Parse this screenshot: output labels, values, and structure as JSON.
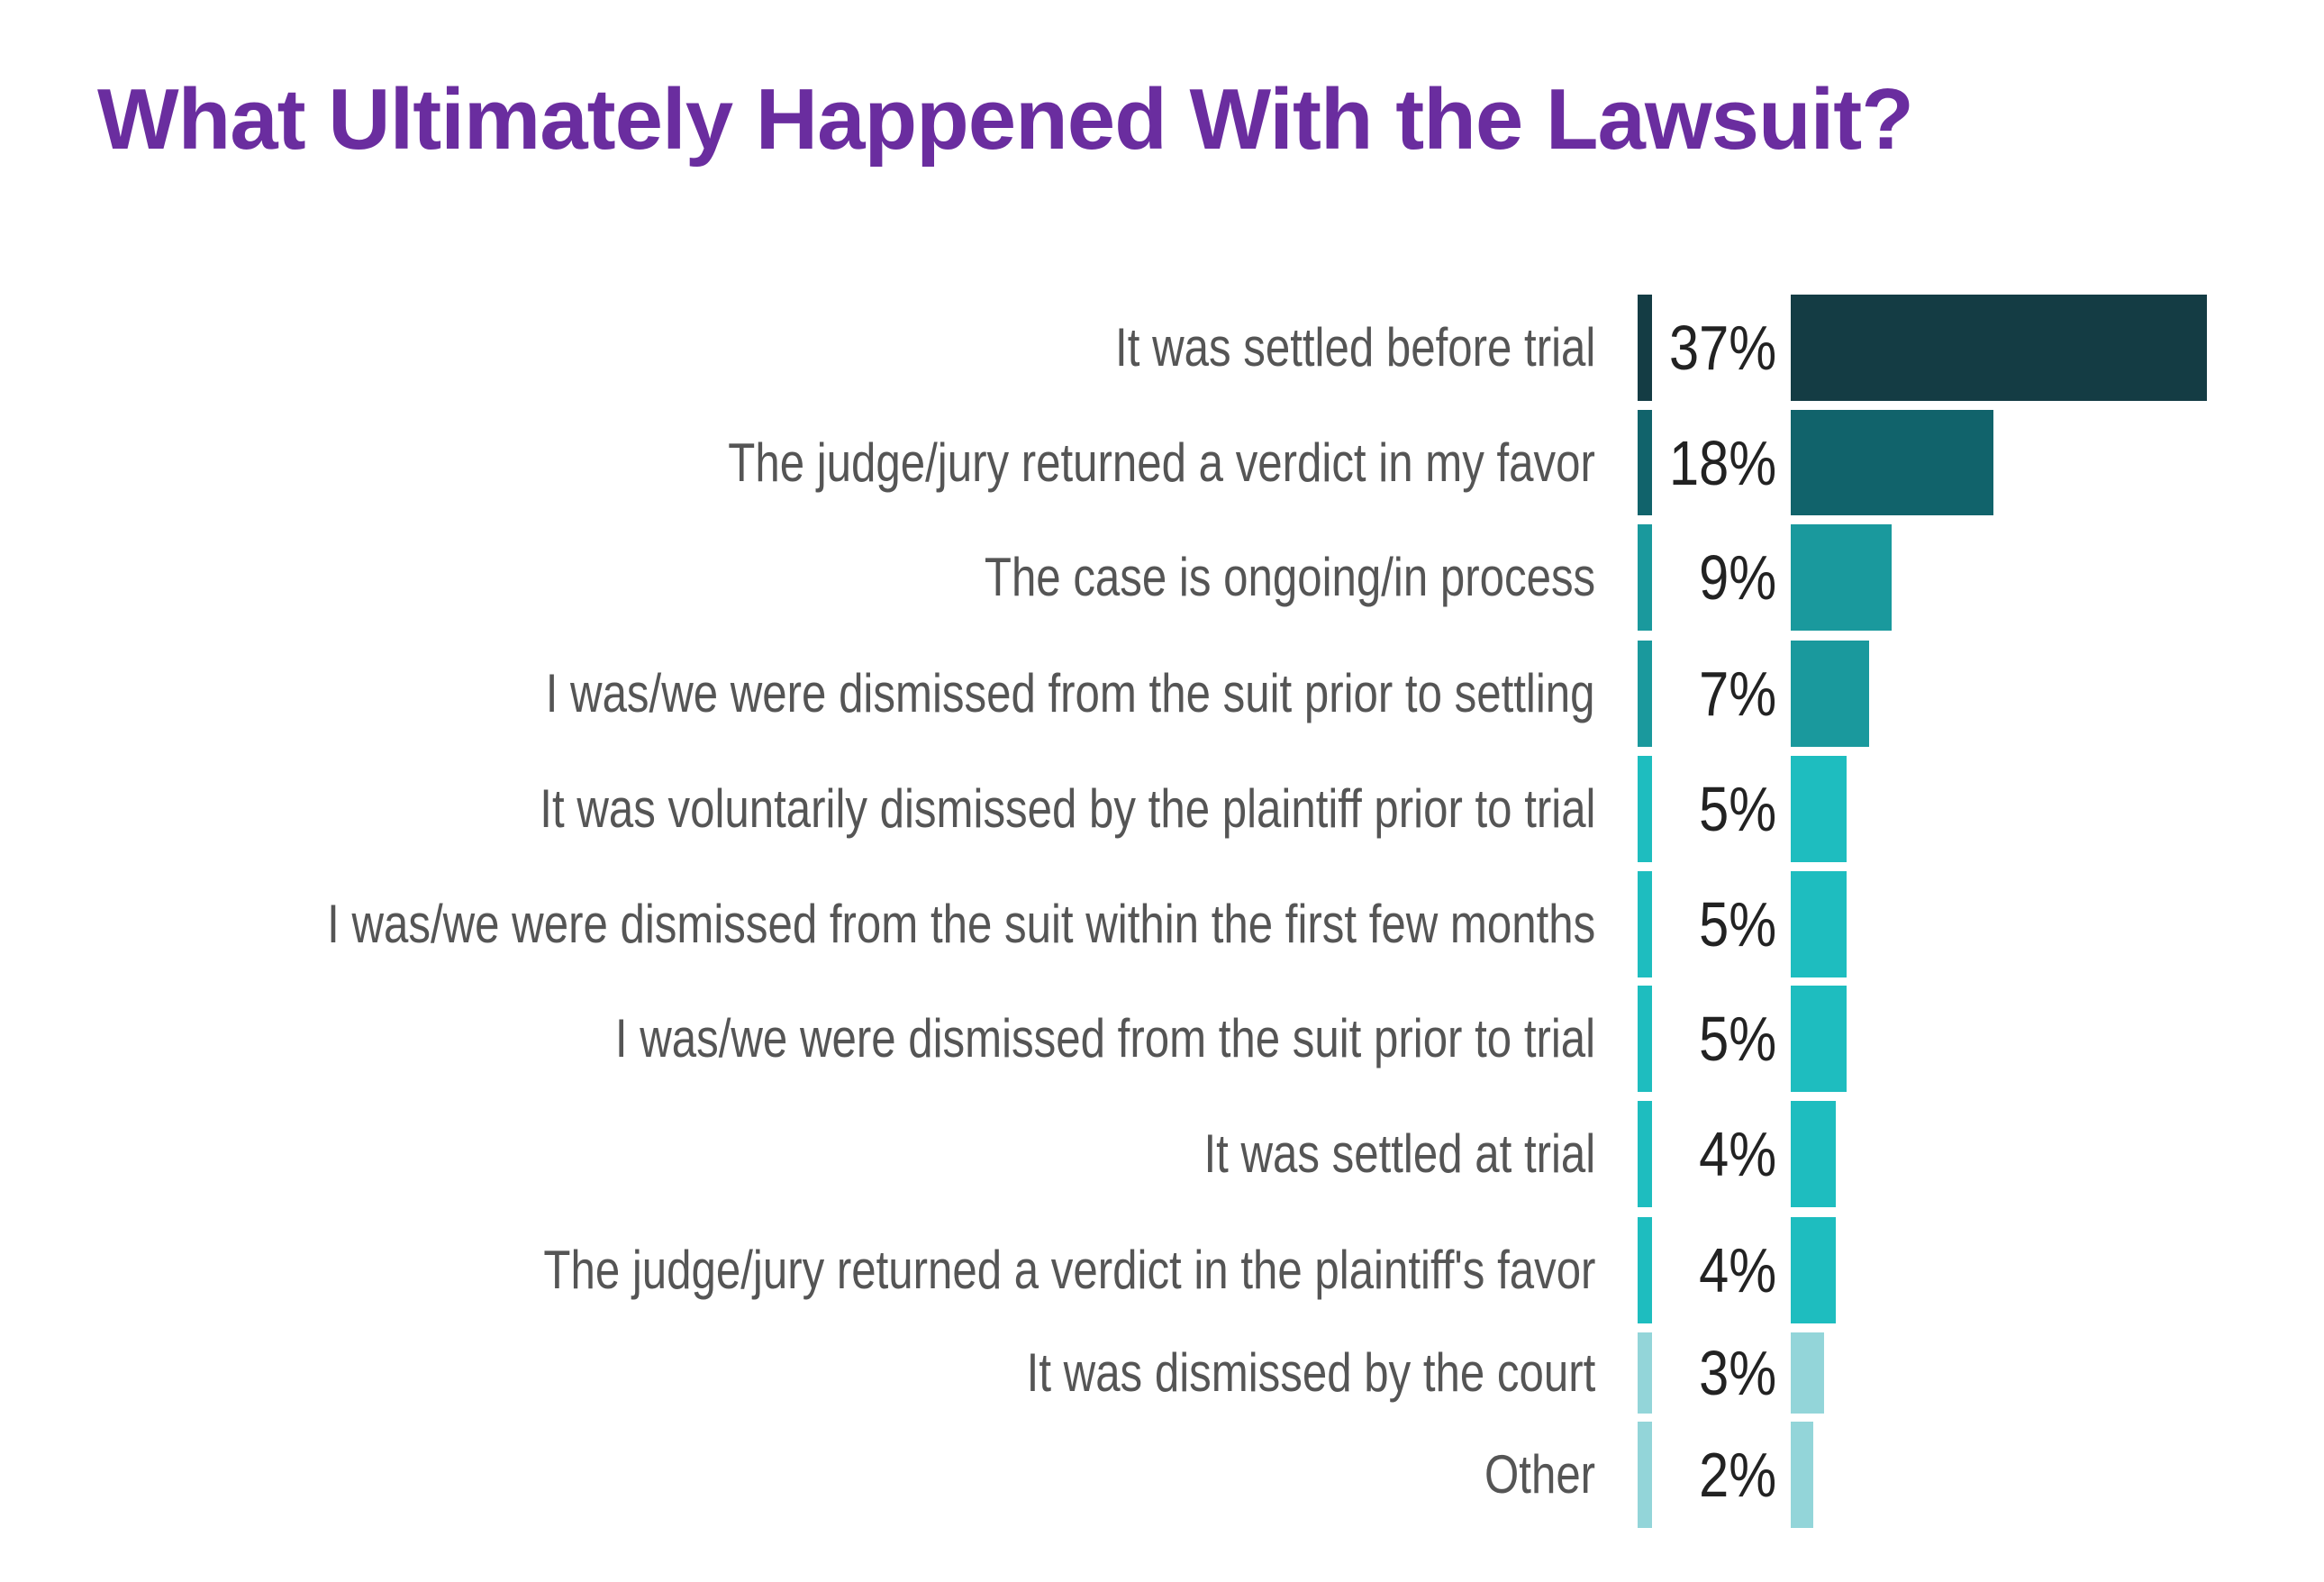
{
  "chart_data": {
    "type": "bar",
    "orientation": "horizontal",
    "title": "What Ultimately Happened With the Lawsuit?",
    "xlabel": "",
    "ylabel": "",
    "grid": false,
    "categories": [
      "It was settled before trial",
      "The judge/jury returned a verdict in my favor",
      "The case is ongoing/in process",
      "I was/we were dismissed from the suit prior to settling",
      "It was voluntarily dismissed by the plaintiff prior to trial",
      "I was/we were dismissed from the suit within the first few months",
      "I was/we were dismissed from the suit prior to trial",
      "It was settled at trial",
      "The judge/jury returned a verdict in the plaintiff's favor",
      "It was dismissed by the court",
      "Other"
    ],
    "values": [
      37,
      18,
      9,
      7,
      5,
      5,
      5,
      4,
      4,
      3,
      2
    ],
    "value_labels": [
      "37%",
      "18%",
      "9%",
      "7%",
      "5%",
      "5%",
      "5%",
      "4%",
      "4%",
      "3%",
      "2%"
    ],
    "unit": "%",
    "colors": [
      "#143c44",
      "#11636b",
      "#1a999d",
      "#1a999d",
      "#1ebdbf",
      "#1ebdbf",
      "#1ebdbf",
      "#1ebdbf",
      "#1ebdbf",
      "#93d5d9",
      "#93d5d9"
    ]
  }
}
